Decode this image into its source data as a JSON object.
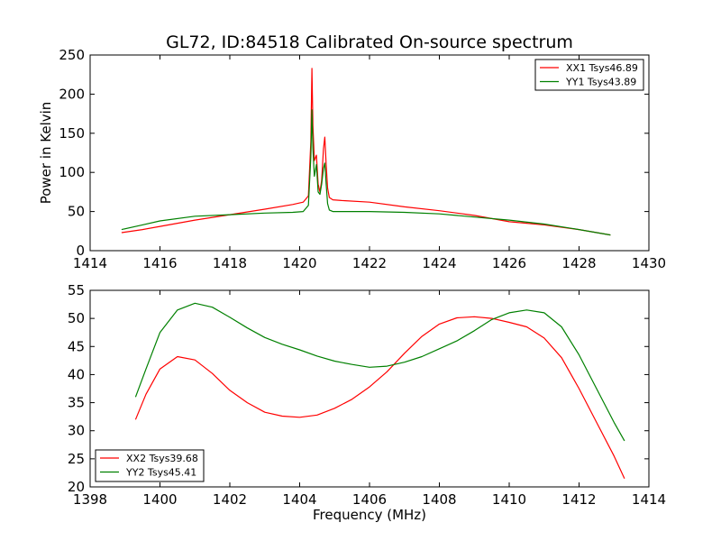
{
  "figure": {
    "title": "GL72, ID:84518 Calibrated On-source spectrum"
  },
  "chart_data": [
    {
      "type": "line",
      "title": "GL72, ID:84518 Calibrated On-source spectrum",
      "xlabel": "",
      "ylabel": "Power in Kelvin",
      "xlim": [
        1414,
        1430
      ],
      "ylim": [
        0,
        250
      ],
      "xticks": [
        "1414",
        "1416",
        "1418",
        "1420",
        "1422",
        "1424",
        "1426",
        "1428",
        "1430"
      ],
      "yticks": [
        "0",
        "50",
        "100",
        "150",
        "200",
        "250"
      ],
      "grid": false,
      "legend_position": "top-right",
      "series": [
        {
          "name": "XX1 Tsys46.89",
          "color": "#ff0000",
          "x": [
            1414.9,
            1415.5,
            1416,
            1417,
            1418,
            1419,
            1419.8,
            1420.1,
            1420.25,
            1420.32,
            1420.35,
            1420.38,
            1420.42,
            1420.48,
            1420.53,
            1420.58,
            1420.63,
            1420.68,
            1420.72,
            1420.76,
            1420.8,
            1420.85,
            1420.95,
            1421.2,
            1422,
            1423,
            1424,
            1425,
            1426,
            1427,
            1428,
            1428.9
          ],
          "y": [
            23,
            27,
            31,
            39,
            46,
            53,
            59,
            62,
            70,
            140,
            233,
            160,
            115,
            122,
            85,
            75,
            90,
            130,
            145,
            110,
            80,
            68,
            65,
            64,
            62,
            56,
            51,
            45,
            37,
            33,
            27,
            20
          ]
        },
        {
          "name": "YY1 Tsys43.89",
          "color": "#008000",
          "x": [
            1414.9,
            1415.5,
            1416,
            1417,
            1418,
            1419,
            1419.8,
            1420.1,
            1420.25,
            1420.32,
            1420.35,
            1420.38,
            1420.42,
            1420.48,
            1420.53,
            1420.58,
            1420.63,
            1420.68,
            1420.72,
            1420.76,
            1420.8,
            1420.85,
            1420.95,
            1421.2,
            1422,
            1423,
            1424,
            1425,
            1426,
            1427,
            1428,
            1428.9
          ],
          "y": [
            27,
            33,
            38,
            44,
            46,
            48,
            49,
            50,
            58,
            120,
            180,
            130,
            95,
            110,
            75,
            72,
            85,
            105,
            112,
            85,
            60,
            52,
            50,
            50,
            50,
            49,
            47,
            43,
            39,
            34,
            27,
            20
          ]
        }
      ]
    },
    {
      "type": "line",
      "title": "",
      "xlabel": "Frequency (MHz)",
      "ylabel": "",
      "xlim": [
        1398,
        1414
      ],
      "ylim": [
        20,
        55
      ],
      "xticks": [
        "1398",
        "1400",
        "1402",
        "1404",
        "1406",
        "1408",
        "1410",
        "1412",
        "1414"
      ],
      "yticks": [
        "20",
        "25",
        "30",
        "35",
        "40",
        "45",
        "50",
        "55"
      ],
      "grid": false,
      "legend_position": "bottom-left",
      "series": [
        {
          "name": "XX2 Tsys39.68",
          "color": "#ff0000",
          "x": [
            1399.3,
            1399.6,
            1400,
            1400.5,
            1401,
            1401.5,
            1402,
            1402.5,
            1403,
            1403.5,
            1404,
            1404.5,
            1405,
            1405.5,
            1406,
            1406.5,
            1407,
            1407.5,
            1408,
            1408.5,
            1409,
            1409.5,
            1410,
            1410.5,
            1411,
            1411.5,
            1412,
            1412.5,
            1413,
            1413.3
          ],
          "y": [
            32,
            36.5,
            41,
            43.2,
            42.6,
            40.2,
            37.2,
            35,
            33.3,
            32.6,
            32.4,
            32.8,
            34,
            35.6,
            37.8,
            40.5,
            43.8,
            46.8,
            49,
            50.1,
            50.3,
            50,
            49.3,
            48.5,
            46.5,
            43,
            37.5,
            31.5,
            25.5,
            21.5
          ]
        },
        {
          "name": "YY2 Tsys45.41",
          "color": "#008000",
          "x": [
            1399.3,
            1399.6,
            1400,
            1400.5,
            1401,
            1401.5,
            1402,
            1402.5,
            1403,
            1403.5,
            1404,
            1404.5,
            1405,
            1405.5,
            1406,
            1406.5,
            1407,
            1407.5,
            1408,
            1408.5,
            1409,
            1409.5,
            1410,
            1410.5,
            1411,
            1411.5,
            1412,
            1412.5,
            1413,
            1413.3
          ],
          "y": [
            36,
            41,
            47.5,
            51.5,
            52.7,
            52,
            50.2,
            48.3,
            46.6,
            45.4,
            44.4,
            43.3,
            42.4,
            41.8,
            41.3,
            41.5,
            42.2,
            43.2,
            44.6,
            46,
            47.8,
            49.8,
            51,
            51.5,
            51,
            48.5,
            43.5,
            37.5,
            31.5,
            28.2
          ]
        }
      ]
    }
  ]
}
